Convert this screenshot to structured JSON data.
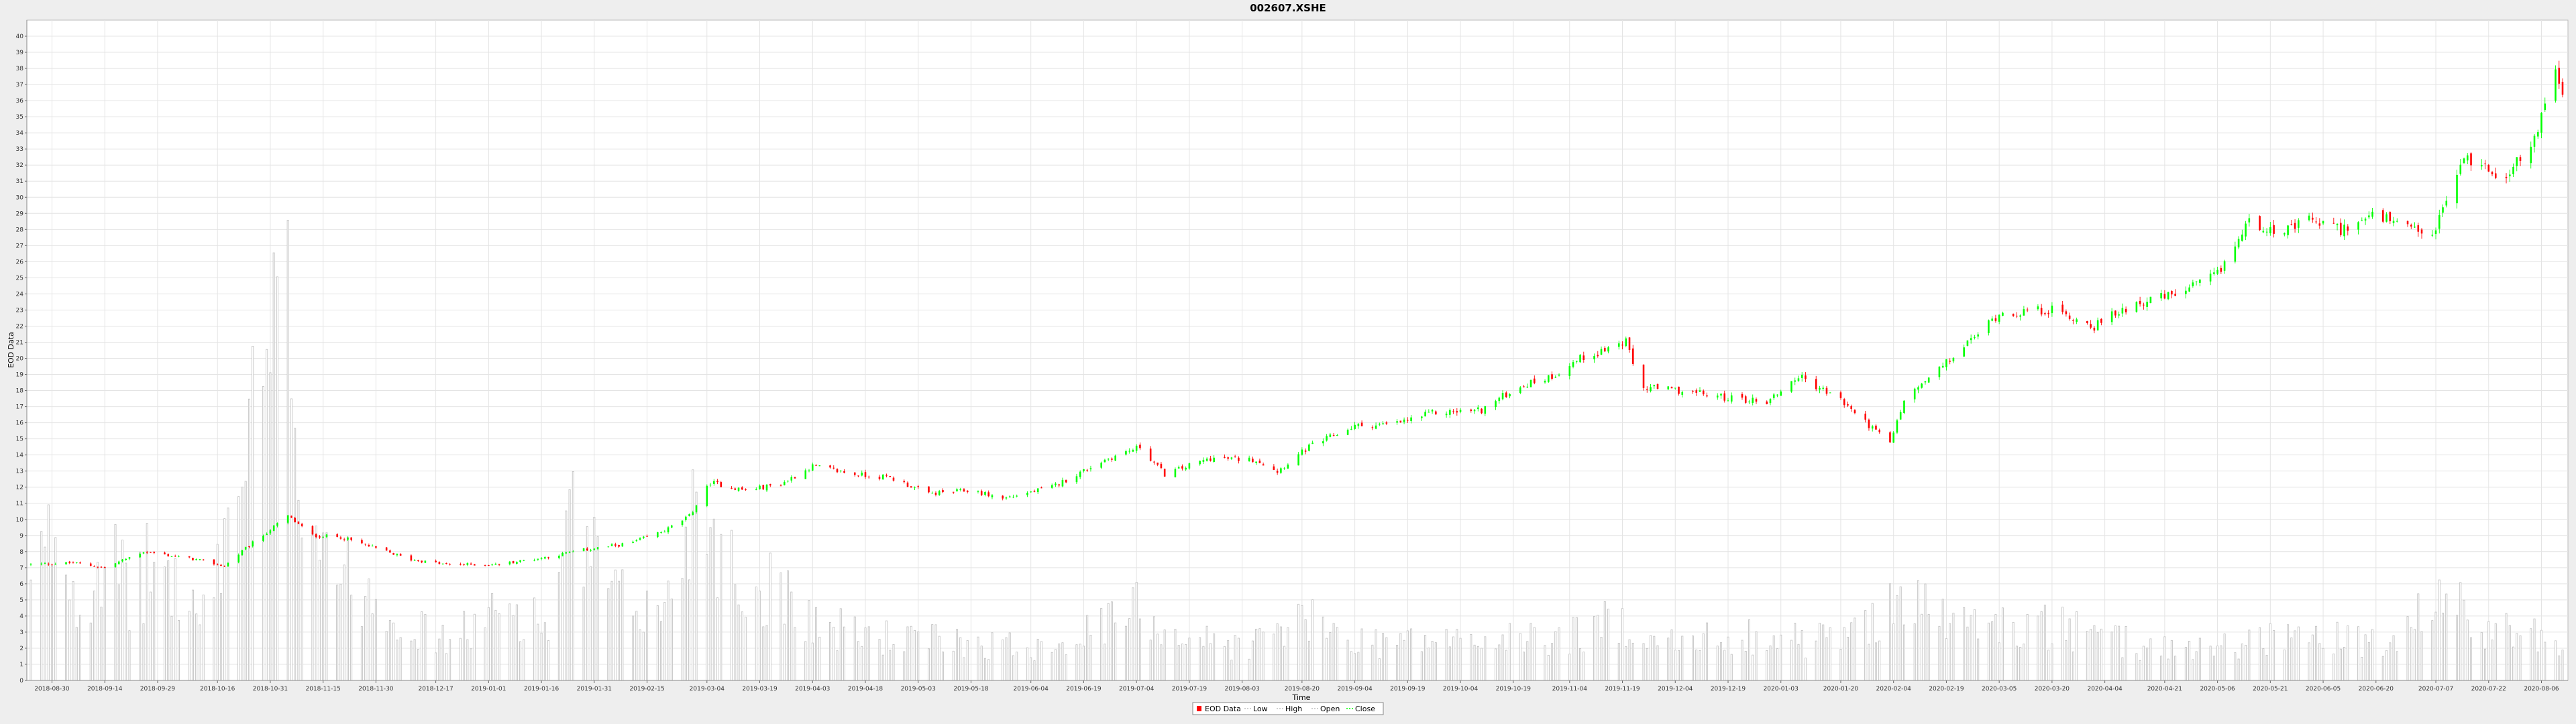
{
  "chart_data": {
    "type": "candlestick",
    "title": "002607.XSHE",
    "xlabel": "Time",
    "ylabel": "EOD Data",
    "ylim": [
      0,
      41
    ],
    "y_ticks": [
      0,
      1,
      2,
      3,
      4,
      5,
      6,
      7,
      8,
      9,
      10,
      11,
      12,
      13,
      14,
      15,
      16,
      17,
      18,
      19,
      20,
      21,
      22,
      23,
      24,
      25,
      26,
      27,
      28,
      29,
      30,
      31,
      32,
      33,
      34,
      35,
      36,
      37,
      38,
      39,
      40
    ],
    "x_start": "2018-08-24",
    "x_end": "2020-08-12",
    "x_ticks": [
      "2018-08-30",
      "2018-09-14",
      "2018-09-29",
      "2018-10-16",
      "2018-10-31",
      "2018-11-15",
      "2018-11-30",
      "2018-12-17",
      "2019-01-01",
      "2019-01-16",
      "2019-01-31",
      "2019-02-15",
      "2019-03-04",
      "2019-03-19",
      "2019-04-03",
      "2019-04-18",
      "2019-05-03",
      "2019-05-18",
      "2019-06-04",
      "2019-06-19",
      "2019-07-04",
      "2019-07-19",
      "2019-08-03",
      "2019-08-20",
      "2019-09-04",
      "2019-09-19",
      "2019-10-04",
      "2019-10-19",
      "2019-11-04",
      "2019-11-19",
      "2019-12-04",
      "2019-12-19",
      "2020-01-03",
      "2020-01-20",
      "2020-02-04",
      "2020-02-19",
      "2020-03-05",
      "2020-03-20",
      "2020-04-04",
      "2020-04-21",
      "2020-05-06",
      "2020-05-21",
      "2020-06-05",
      "2020-06-20",
      "2020-07-07",
      "2020-07-22",
      "2020-08-06"
    ],
    "price_series": [
      [
        "2018-08-24",
        7.2
      ],
      [
        "2018-09-05",
        7.3
      ],
      [
        "2018-09-14",
        7.0
      ],
      [
        "2018-09-25",
        8.0
      ],
      [
        "2018-10-10",
        7.5
      ],
      [
        "2018-10-18",
        7.1
      ],
      [
        "2018-10-24",
        8.2
      ],
      [
        "2018-11-05",
        10.2
      ],
      [
        "2018-11-12",
        9.0
      ],
      [
        "2018-11-20",
        8.9
      ],
      [
        "2018-11-30",
        8.2
      ],
      [
        "2018-12-10",
        7.5
      ],
      [
        "2018-12-20",
        7.2
      ],
      [
        "2019-01-03",
        7.2
      ],
      [
        "2019-01-16",
        7.6
      ],
      [
        "2019-01-28",
        8.1
      ],
      [
        "2019-02-10",
        8.5
      ],
      [
        "2019-02-20",
        9.3
      ],
      [
        "2019-02-27",
        10.2
      ],
      [
        "2019-03-05",
        12.3
      ],
      [
        "2019-03-15",
        11.8
      ],
      [
        "2019-03-25",
        12.2
      ],
      [
        "2019-04-03",
        13.3
      ],
      [
        "2019-04-15",
        12.8
      ],
      [
        "2019-04-25",
        12.6
      ],
      [
        "2019-05-06",
        11.6
      ],
      [
        "2019-05-18",
        11.8
      ],
      [
        "2019-05-27",
        11.3
      ],
      [
        "2019-06-10",
        12.0
      ],
      [
        "2019-06-25",
        13.7
      ],
      [
        "2019-07-05",
        14.5
      ],
      [
        "2019-07-12",
        12.8
      ],
      [
        "2019-07-25",
        13.8
      ],
      [
        "2019-08-07",
        13.7
      ],
      [
        "2019-08-13",
        13.0
      ],
      [
        "2019-08-22",
        14.5
      ],
      [
        "2019-09-04",
        15.8
      ],
      [
        "2019-09-15",
        15.9
      ],
      [
        "2019-09-26",
        16.6
      ],
      [
        "2019-10-10",
        16.8
      ],
      [
        "2019-10-20",
        18.2
      ],
      [
        "2019-10-30",
        18.9
      ],
      [
        "2019-11-07",
        20.0
      ],
      [
        "2019-11-20",
        21.0
      ],
      [
        "2019-11-24",
        18.2
      ],
      [
        "2019-12-05",
        18.0
      ],
      [
        "2019-12-17",
        17.6
      ],
      [
        "2019-12-30",
        17.3
      ],
      [
        "2020-01-08",
        18.9
      ],
      [
        "2020-01-20",
        17.4
      ],
      [
        "2020-02-03",
        14.7
      ],
      [
        "2020-02-07",
        17.4
      ],
      [
        "2020-02-19",
        19.7
      ],
      [
        "2020-03-05",
        22.8
      ],
      [
        "2020-03-20",
        23.0
      ],
      [
        "2020-04-01",
        22.0
      ],
      [
        "2020-04-12",
        23.4
      ],
      [
        "2020-04-25",
        24.0
      ],
      [
        "2020-05-06",
        25.2
      ],
      [
        "2020-05-15",
        28.5
      ],
      [
        "2020-05-25",
        27.8
      ],
      [
        "2020-06-01",
        28.6
      ],
      [
        "2020-06-10",
        28.0
      ],
      [
        "2020-06-20",
        28.9
      ],
      [
        "2020-06-30",
        27.9
      ],
      [
        "2020-07-06",
        27.6
      ],
      [
        "2020-07-15",
        32.5
      ],
      [
        "2020-07-26",
        31.3
      ],
      [
        "2020-08-03",
        33.0
      ],
      [
        "2020-08-10",
        38.0
      ],
      [
        "2020-08-12",
        36.0
      ]
    ],
    "volume_series": [
      [
        "2018-08-24",
        6.5
      ],
      [
        "2018-08-31",
        11.5
      ],
      [
        "2018-09-07",
        5.5
      ],
      [
        "2018-09-14",
        10.5
      ],
      [
        "2018-09-21",
        6.0
      ],
      [
        "2018-09-28",
        9.0
      ],
      [
        "2018-10-12",
        4.5
      ],
      [
        "2018-10-22",
        15.2
      ],
      [
        "2018-11-06",
        27.6
      ],
      [
        "2018-11-08",
        17.5
      ],
      [
        "2018-11-13",
        12.5
      ],
      [
        "2018-11-22",
        7.5
      ],
      [
        "2018-12-01",
        6.5
      ],
      [
        "2018-12-10",
        4.0
      ],
      [
        "2018-12-20",
        3.0
      ],
      [
        "2019-01-08",
        5.5
      ],
      [
        "2019-01-18",
        4.0
      ],
      [
        "2019-01-25",
        11.6
      ],
      [
        "2019-02-06",
        6.0
      ],
      [
        "2019-02-20",
        5.0
      ],
      [
        "2019-02-28",
        13.2
      ],
      [
        "2019-03-05",
        12.5
      ],
      [
        "2019-03-15",
        6.0
      ],
      [
        "2019-03-25",
        7.5
      ],
      [
        "2019-04-05",
        4.0
      ],
      [
        "2019-04-18",
        3.5
      ],
      [
        "2019-04-30",
        3.0
      ],
      [
        "2019-05-15",
        3.0
      ],
      [
        "2019-06-01",
        2.5
      ],
      [
        "2019-06-20",
        3.5
      ],
      [
        "2019-07-05",
        5.5
      ],
      [
        "2019-07-15",
        3.5
      ],
      [
        "2019-08-03",
        2.5
      ],
      [
        "2019-08-20",
        4.5
      ],
      [
        "2019-09-05",
        3.0
      ],
      [
        "2019-09-25",
        3.0
      ],
      [
        "2019-10-15",
        3.0
      ],
      [
        "2019-11-01",
        3.2
      ],
      [
        "2019-11-20",
        4.5
      ],
      [
        "2019-12-05",
        2.5
      ],
      [
        "2019-12-20",
        3.5
      ],
      [
        "2020-01-10",
        3.0
      ],
      [
        "2020-01-25",
        3.5
      ],
      [
        "2020-02-04",
        6.5
      ],
      [
        "2020-02-19",
        4.5
      ],
      [
        "2020-03-05",
        4.0
      ],
      [
        "2020-03-20",
        4.0
      ],
      [
        "2020-04-05",
        3.0
      ],
      [
        "2020-04-20",
        2.5
      ],
      [
        "2020-05-06",
        2.5
      ],
      [
        "2020-05-25",
        3.5
      ],
      [
        "2020-06-10",
        3.0
      ],
      [
        "2020-06-25",
        2.5
      ],
      [
        "2020-07-08",
        6.3
      ],
      [
        "2020-07-20",
        4.0
      ],
      [
        "2020-08-01",
        3.5
      ],
      [
        "2020-08-10",
        3.2
      ]
    ],
    "legend": [
      "EOD Data",
      "Low",
      "High",
      "Open",
      "Close"
    ],
    "legend_position": "bottom-center",
    "grid": true,
    "colors": {
      "up": "#00ff00",
      "down": "#ff0000",
      "volume": "#c0c0c0",
      "grid": "#e4e4e4",
      "plot_bg": "#ffffff",
      "background": "#eeeeee"
    }
  }
}
